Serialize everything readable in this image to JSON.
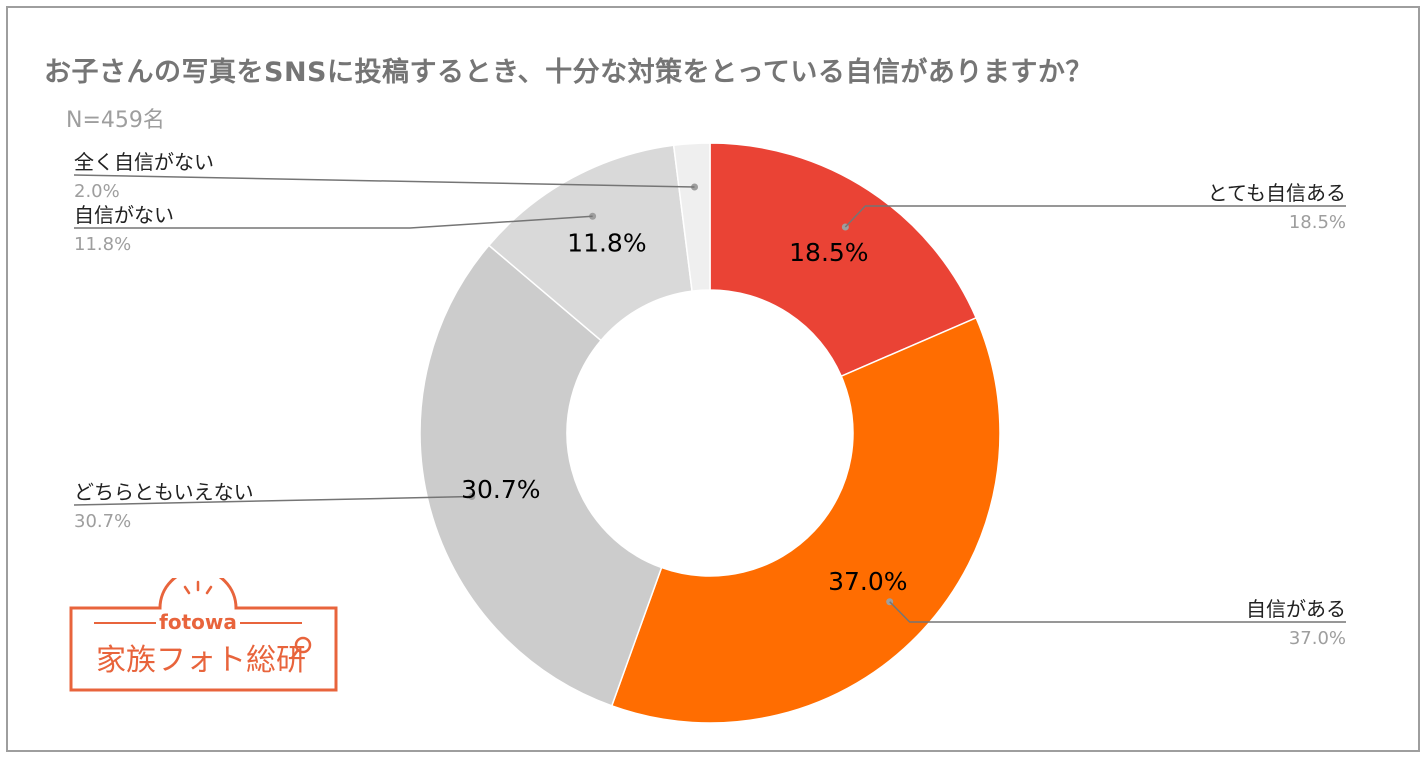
{
  "title": "お子さんの写真をSNSに投稿するとき、十分な対策をとっている自信がありますか？",
  "subtitle": "N=459名",
  "colors": {
    "very_confident": "#ea4335",
    "confident": "#ff6d01",
    "neutral": "#cccccc",
    "not_confident": "#d9d9d9",
    "not_at_all": "#efefef"
  },
  "chart_data": {
    "type": "pie",
    "donut": true,
    "slices": [
      {
        "label": "とても自信ある",
        "value": 18.5,
        "display": "18.5%",
        "color": "#ea4335"
      },
      {
        "label": "自信がある",
        "value": 37.0,
        "display": "37.0%",
        "color": "#ff6d01"
      },
      {
        "label": "どちらともいえない",
        "value": 30.7,
        "display": "30.7%",
        "color": "#cccccc"
      },
      {
        "label": "自信がない",
        "value": 11.8,
        "display": "11.8%",
        "color": "#d9d9d9"
      },
      {
        "label": "全く自信がない",
        "value": 2.0,
        "display": "2.0%",
        "color": "#efefef"
      }
    ]
  },
  "logo": {
    "brand": "fotowa",
    "name": "家族フォト総研",
    "color": "#e8643c"
  }
}
